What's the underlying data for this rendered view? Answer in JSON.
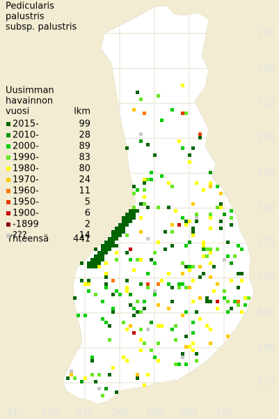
{
  "title": [
    "Pedicularis",
    "palustris",
    "subsp. palustris"
  ],
  "legend": {
    "heading": [
      "Uusimman",
      "havainnon",
      "vuosi"
    ],
    "count_heading": "lkm",
    "entries": [
      {
        "label": "2015-",
        "count": 99,
        "color": "#006400"
      },
      {
        "label": "2010-",
        "count": 28,
        "color": "#009a00"
      },
      {
        "label": "2000-",
        "count": 89,
        "color": "#00cc00"
      },
      {
        "label": "1990-",
        "count": 83,
        "color": "#66e622"
      },
      {
        "label": "1980-",
        "count": 80,
        "color": "#ffff00"
      },
      {
        "label": "1970-",
        "count": 24,
        "color": "#ffc800"
      },
      {
        "label": "1960-",
        "count": 11,
        "color": "#ff7800"
      },
      {
        "label": "1950-",
        "count": 5,
        "color": "#e63c00"
      },
      {
        "label": "1900-",
        "count": 6,
        "color": "#c80000"
      },
      {
        "label": "-1899",
        "count": 2,
        "color": "#8c0000"
      },
      {
        "label": "???",
        "count": 14,
        "color": "#c8c8c8"
      }
    ],
    "total": {
      "label": "Yhteensä",
      "count": 441
    }
  },
  "xticks": [
    310,
    320,
    330,
    340,
    350,
    360,
    370
  ],
  "yticks": [
    670,
    680,
    690,
    700,
    710,
    720,
    730,
    740,
    750,
    760,
    770
  ]
}
